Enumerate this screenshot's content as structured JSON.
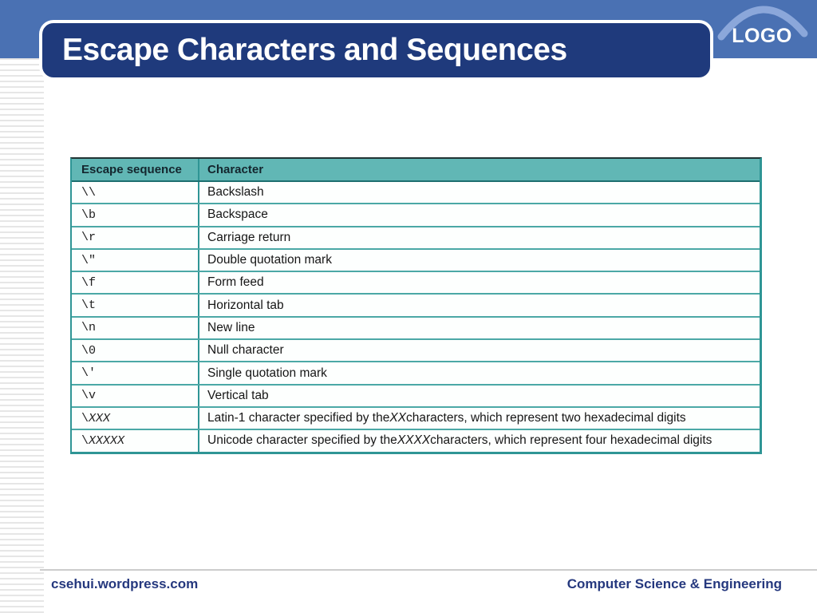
{
  "title_bar": {
    "title": "Escape Characters and Sequences"
  },
  "logo": {
    "label": "LOGO"
  },
  "table": {
    "columns": [
      "Escape sequence",
      "Character"
    ],
    "rows": [
      {
        "seq": [
          {
            "t": "\\\\"
          }
        ],
        "desc": [
          {
            "t": "Backslash"
          }
        ]
      },
      {
        "seq": [
          {
            "t": "\\b"
          }
        ],
        "desc": [
          {
            "t": "Backspace"
          }
        ]
      },
      {
        "seq": [
          {
            "t": "\\r"
          }
        ],
        "desc": [
          {
            "t": "Carriage return"
          }
        ]
      },
      {
        "seq": [
          {
            "t": "\\\""
          }
        ],
        "desc": [
          {
            "t": "Double quotation mark"
          }
        ]
      },
      {
        "seq": [
          {
            "t": "\\f"
          }
        ],
        "desc": [
          {
            "t": "Form feed"
          }
        ]
      },
      {
        "seq": [
          {
            "t": "\\t"
          }
        ],
        "desc": [
          {
            "t": "Horizontal tab"
          }
        ]
      },
      {
        "seq": [
          {
            "t": "\\n"
          }
        ],
        "desc": [
          {
            "t": "New line"
          }
        ]
      },
      {
        "seq": [
          {
            "t": "\\0"
          }
        ],
        "desc": [
          {
            "t": "Null character"
          }
        ]
      },
      {
        "seq": [
          {
            "t": "\\'"
          }
        ],
        "desc": [
          {
            "t": "Single quotation mark"
          }
        ]
      },
      {
        "seq": [
          {
            "t": "\\v"
          }
        ],
        "desc": [
          {
            "t": "Vertical tab"
          }
        ]
      },
      {
        "seq": [
          {
            "t": "\\"
          },
          {
            "t": "XXX",
            "i": true
          }
        ],
        "desc": [
          {
            "t": "Latin-1 character specified by the "
          },
          {
            "t": "XX",
            "i": true
          },
          {
            "t": " characters, which represent two hexadecimal digits"
          }
        ]
      },
      {
        "seq": [
          {
            "t": "\\"
          },
          {
            "t": "XXXXX",
            "i": true
          }
        ],
        "desc": [
          {
            "t": "Unicode character specified by the "
          },
          {
            "t": "XXXX",
            "i": true
          },
          {
            "t": " characters, which represent four hexadecimal digits"
          }
        ]
      }
    ]
  },
  "footer": {
    "left": "csehui.wordpress.com",
    "right": "Computer Science & Engineering"
  },
  "colors": {
    "band_blue": "#4a71b3",
    "title_navy": "#1f3a7c",
    "table_header_teal": "#61b7b5",
    "table_line_teal": "#2f9595",
    "footer_navy": "#25387e",
    "logo_arc_blue": "#8ba7da"
  }
}
